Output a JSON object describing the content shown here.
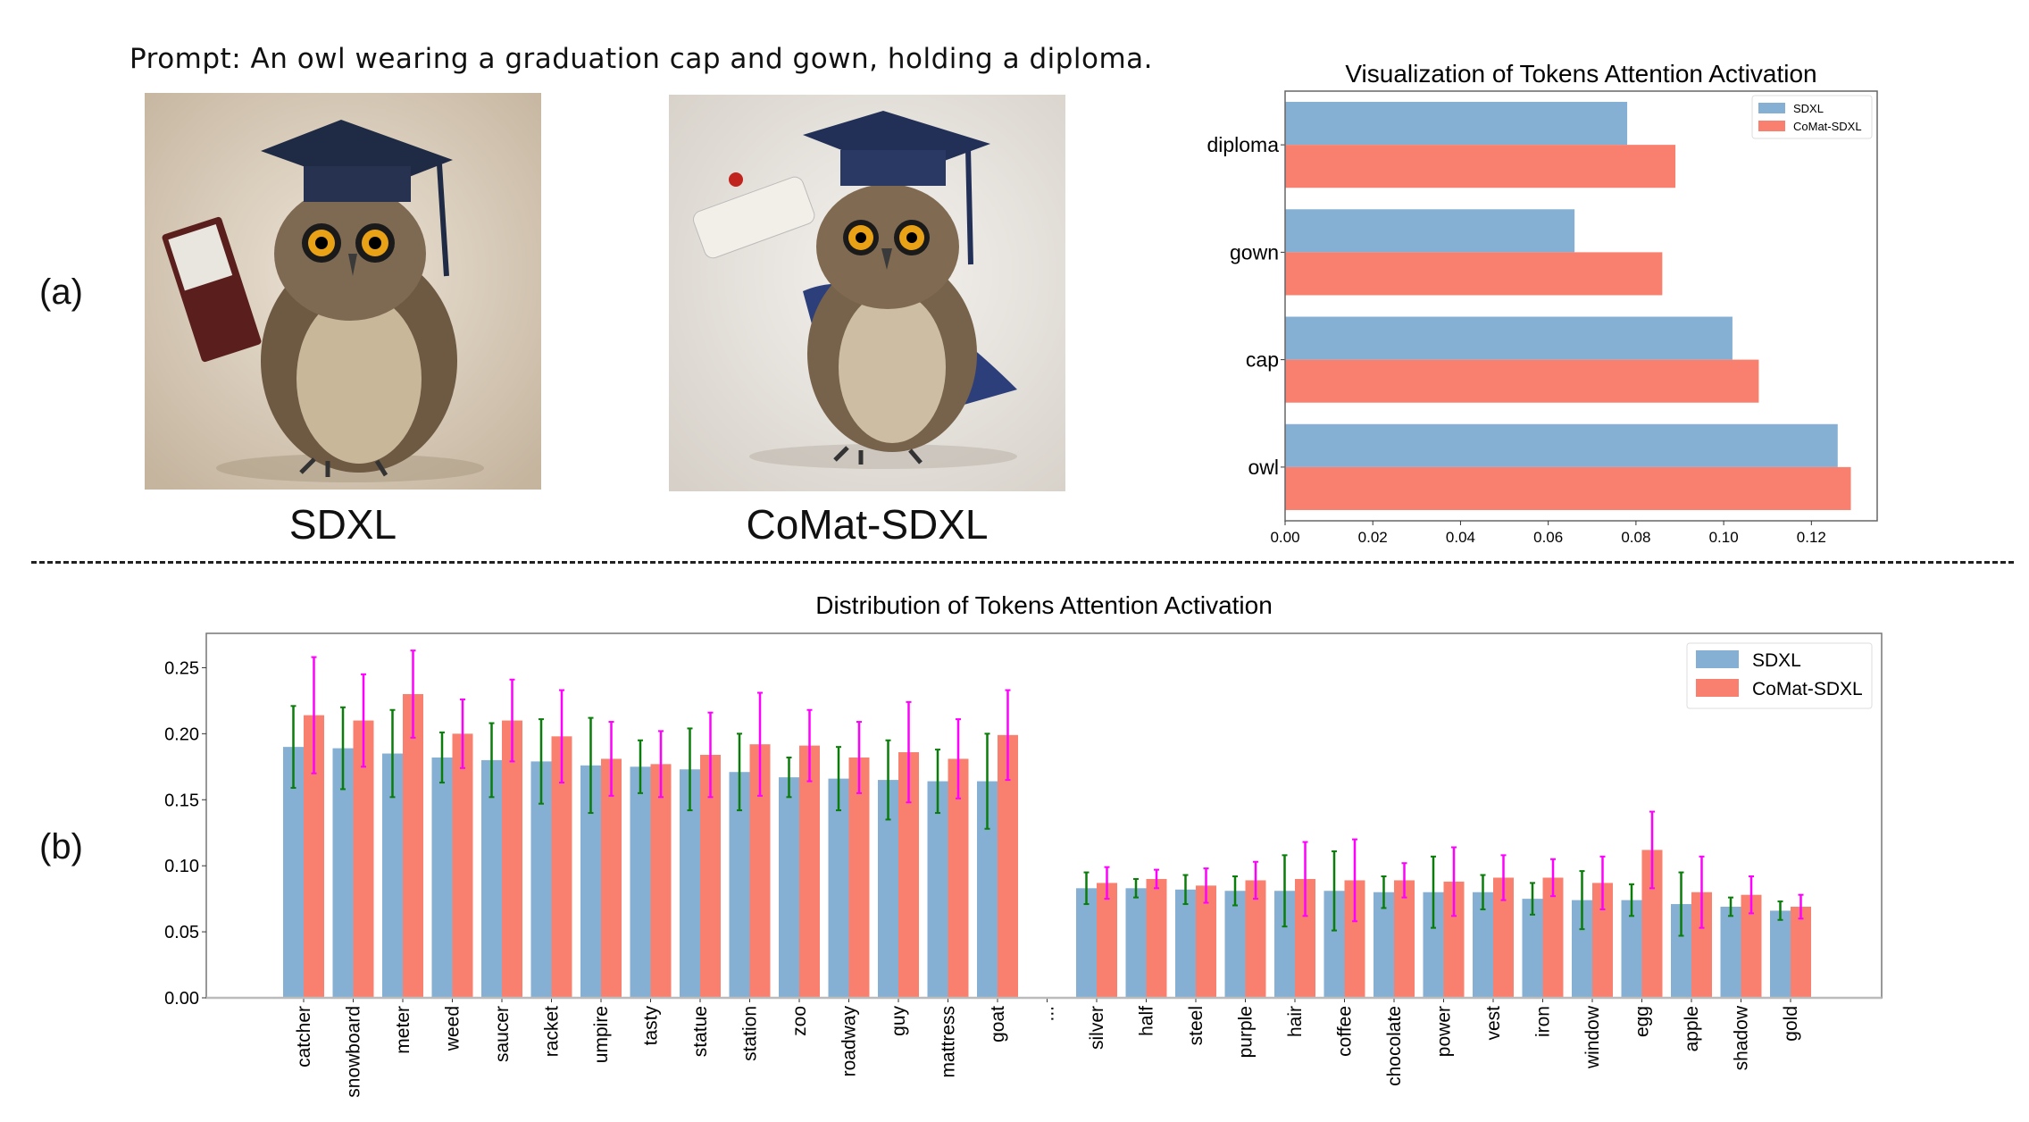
{
  "prompt": "Prompt: An owl wearing a graduation cap and gown, holding a diploma.",
  "panel_a_label": "(a)",
  "panel_b_label": "(b)",
  "images": [
    {
      "caption": "SDXL"
    },
    {
      "caption": "CoMat-SDXL"
    }
  ],
  "colors": {
    "sdxl": "#85b0d3",
    "comat": "#f9806f",
    "err_sdxl": "#0a7d0a",
    "err_comat": "#ff00ff"
  },
  "chart_data": [
    {
      "type": "bar",
      "orientation": "horizontal",
      "title": "Visualization of Tokens Attention Activation",
      "categories": [
        "diploma",
        "gown",
        "cap",
        "owl"
      ],
      "series": [
        {
          "name": "SDXL",
          "values": [
            0.078,
            0.066,
            0.102,
            0.126
          ]
        },
        {
          "name": "CoMat-SDXL",
          "values": [
            0.089,
            0.086,
            0.108,
            0.129
          ]
        }
      ],
      "xlim": [
        0,
        0.135
      ],
      "xticks": [
        "0.00",
        "0.02",
        "0.04",
        "0.06",
        "0.08",
        "0.10",
        "0.12"
      ],
      "grid": false,
      "legend": "top-right"
    },
    {
      "type": "bar",
      "title": "Distribution of Tokens Attention Activation",
      "categories": [
        "catcher",
        "snowboard",
        "meter",
        "weed",
        "saucer",
        "racket",
        "umpire",
        "tasty",
        "statue",
        "station",
        "zoo",
        "roadway",
        "guy",
        "mattress",
        "goat",
        "...",
        "silver",
        "half",
        "steel",
        "purple",
        "hair",
        "coffee",
        "chocolate",
        "power",
        "vest",
        "iron",
        "window",
        "egg",
        "apple",
        "shadow",
        "gold"
      ],
      "series": [
        {
          "name": "SDXL",
          "values": [
            0.19,
            0.189,
            0.185,
            0.182,
            0.18,
            0.179,
            0.176,
            0.175,
            0.173,
            0.171,
            0.167,
            0.166,
            0.165,
            0.164,
            0.164,
            null,
            0.083,
            0.083,
            0.082,
            0.081,
            0.081,
            0.081,
            0.08,
            0.08,
            0.08,
            0.075,
            0.074,
            0.074,
            0.071,
            0.069,
            0.066
          ],
          "errors": [
            0.031,
            0.031,
            0.033,
            0.019,
            0.028,
            0.032,
            0.036,
            0.02,
            0.031,
            0.029,
            0.015,
            0.024,
            0.03,
            0.024,
            0.036,
            null,
            0.012,
            0.007,
            0.011,
            0.011,
            0.027,
            0.03,
            0.012,
            0.027,
            0.013,
            0.012,
            0.022,
            0.012,
            0.024,
            0.007,
            0.007
          ]
        },
        {
          "name": "CoMat-SDXL",
          "values": [
            0.214,
            0.21,
            0.23,
            0.2,
            0.21,
            0.198,
            0.181,
            0.177,
            0.184,
            0.192,
            0.191,
            0.182,
            0.186,
            0.181,
            0.199,
            null,
            0.087,
            0.09,
            0.085,
            0.089,
            0.09,
            0.089,
            0.089,
            0.088,
            0.091,
            0.091,
            0.087,
            0.112,
            0.08,
            0.078,
            0.069
          ],
          "errors": [
            0.044,
            0.035,
            0.033,
            0.026,
            0.031,
            0.035,
            0.028,
            0.025,
            0.032,
            0.039,
            0.027,
            0.027,
            0.038,
            0.03,
            0.034,
            null,
            0.012,
            0.007,
            0.013,
            0.014,
            0.028,
            0.031,
            0.013,
            0.026,
            0.017,
            0.014,
            0.02,
            0.029,
            0.027,
            0.014,
            0.009
          ]
        }
      ],
      "ylim": [
        0,
        0.276
      ],
      "yticks": [
        "0.00",
        "0.05",
        "0.10",
        "0.15",
        "0.20",
        "0.25"
      ],
      "grid": false,
      "legend": "top-right"
    }
  ]
}
